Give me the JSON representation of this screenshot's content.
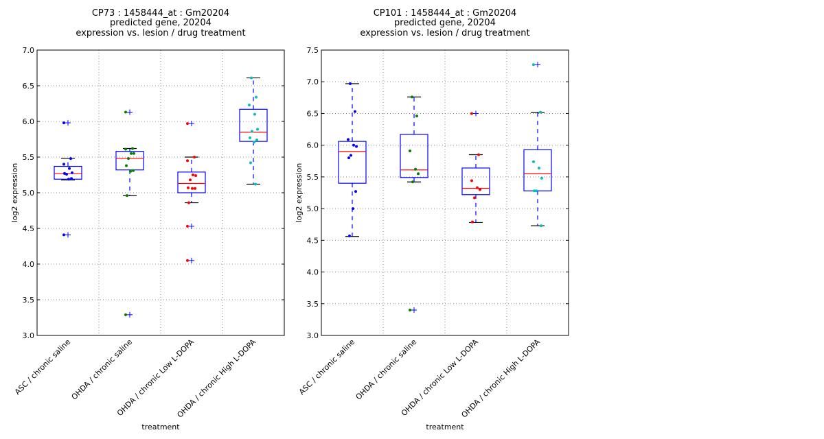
{
  "chart_data": [
    {
      "type": "box",
      "title_lines": [
        "CP73 : 1458444_at : Gm20204",
        "predicted gene, 20204",
        "expression vs. lesion / drug treatment"
      ],
      "xlabel": "treatment",
      "ylabel": "log2 expression",
      "ylim": [
        3.0,
        7.0
      ],
      "yticks": [
        "3.0",
        "3.5",
        "4.0",
        "4.5",
        "5.0",
        "5.5",
        "6.0",
        "6.5",
        "7.0"
      ],
      "grid": true,
      "categories": [
        "ASC / chronic saline",
        "OHDA / chronic saline",
        "OHDA / chronic Low L-DOPA",
        "OHDA / chronic High L-DOPA"
      ],
      "colors": [
        "#0000ff",
        "#008000",
        "#ff0000",
        "#00bfbf"
      ],
      "groups": [
        {
          "q1": 5.19,
          "median": 5.27,
          "q3": 5.37,
          "whisker_low": 5.18,
          "whisker_high": 5.48,
          "outliers": [
            5.98,
            4.41
          ],
          "points": [
            5.98,
            5.48,
            5.4,
            5.34,
            5.28,
            5.26,
            5.27,
            5.2,
            5.19,
            4.41
          ]
        },
        {
          "q1": 5.32,
          "median": 5.48,
          "q3": 5.58,
          "whisker_low": 4.96,
          "whisker_high": 5.62,
          "outliers": [
            6.13,
            3.29
          ],
          "points": [
            6.13,
            5.62,
            5.61,
            5.55,
            5.55,
            5.48,
            5.38,
            5.31,
            5.3,
            4.96,
            3.29
          ]
        },
        {
          "q1": 5.0,
          "median": 5.13,
          "q3": 5.29,
          "whisker_low": 4.86,
          "whisker_high": 5.5,
          "outliers": [
            5.97,
            4.53,
            4.05
          ],
          "points": [
            5.97,
            5.5,
            5.45,
            5.25,
            5.24,
            5.18,
            5.07,
            5.06,
            5.06,
            4.86,
            4.53,
            4.05
          ]
        },
        {
          "q1": 5.72,
          "median": 5.85,
          "q3": 6.17,
          "whisker_low": 5.12,
          "whisker_high": 6.61,
          "outliers": [],
          "points": [
            6.61,
            6.34,
            6.23,
            6.1,
            5.89,
            5.86,
            5.77,
            5.74,
            5.71,
            5.42,
            5.12
          ]
        }
      ]
    },
    {
      "type": "box",
      "title_lines": [
        "CP101 : 1458444_at : Gm20204",
        "predicted gene, 20204",
        "expression vs. lesion / drug treatment"
      ],
      "xlabel": "treatment",
      "ylabel": "log2 expression",
      "ylim": [
        3.0,
        7.5
      ],
      "yticks": [
        "3.0",
        "3.5",
        "4.0",
        "4.5",
        "5.0",
        "5.5",
        "6.0",
        "6.5",
        "7.0",
        "7.5"
      ],
      "grid": true,
      "categories": [
        "ASC / chronic saline",
        "OHDA / chronic saline",
        "OHDA / chronic Low L-DOPA",
        "OHDA / chronic High L-DOPA"
      ],
      "colors": [
        "#0000ff",
        "#008000",
        "#ff0000",
        "#00bfbf"
      ],
      "groups": [
        {
          "q1": 5.4,
          "median": 5.9,
          "q3": 6.06,
          "whisker_low": 4.56,
          "whisker_high": 6.97,
          "outliers": [],
          "points": [
            6.97,
            6.53,
            6.09,
            6.0,
            5.98,
            5.84,
            5.8,
            5.27,
            5.0,
            4.57
          ]
        },
        {
          "q1": 5.49,
          "median": 5.61,
          "q3": 6.17,
          "whisker_low": 5.42,
          "whisker_high": 6.76,
          "outliers": [
            3.4
          ],
          "points": [
            6.76,
            6.46,
            5.91,
            5.62,
            5.55,
            5.42,
            3.4
          ]
        },
        {
          "q1": 5.22,
          "median": 5.32,
          "q3": 5.64,
          "whisker_low": 4.78,
          "whisker_high": 5.85,
          "outliers": [
            6.5
          ],
          "points": [
            6.5,
            5.85,
            5.44,
            5.33,
            5.3,
            5.17,
            4.79
          ]
        },
        {
          "q1": 5.28,
          "median": 5.55,
          "q3": 5.93,
          "whisker_low": 4.73,
          "whisker_high": 6.52,
          "outliers": [
            7.27
          ],
          "points": [
            7.27,
            6.52,
            5.74,
            5.64,
            5.48,
            5.28,
            5.28,
            4.73
          ]
        }
      ]
    }
  ]
}
